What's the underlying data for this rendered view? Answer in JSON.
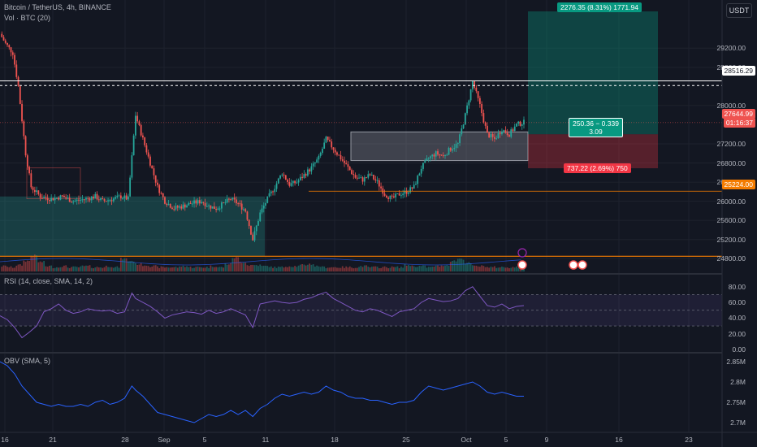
{
  "header": {
    "symbol": "Bitcoin / TetherUS, 4h, BINANCE",
    "volume_label": "Vol · BTC (20)",
    "currency_button": "USDT"
  },
  "rsi_label": "RSI (14, close, SMA, 14, 2)",
  "obv_label": "OBV (SMA, 5)",
  "badges": {
    "line_price": "28516.29",
    "current_price": "27644.99",
    "countdown": "01:16:37",
    "support_price": "25224.00"
  },
  "position": {
    "target_label": "2276.35 (8.31%) 1771.94",
    "ratio_label": "250.36 − 0.339",
    "ratio_value": "3.09",
    "stop_label": "737.22 (2.69%) 750"
  },
  "colors": {
    "up": "#26a69a",
    "down": "#ef5350",
    "background": "#131722",
    "rsi_line": "#7e57c2",
    "obv_line": "#2962ff",
    "support_line": "#f57c00"
  },
  "chart_data": [
    {
      "type": "candlestick",
      "title": "Bitcoin / TetherUS, 4h, BINANCE",
      "ylim": [
        24600,
        29800
      ],
      "y_ticks": [
        "29200.00",
        "28800.00",
        "28000.00",
        "27200.00",
        "26800.00",
        "26400.00",
        "26000.00",
        "25600.00",
        "25200.00",
        "24800.00"
      ],
      "x_ticks": [
        "16",
        "21",
        "28",
        "Sep",
        "5",
        "11",
        "18",
        "25",
        "Oct",
        "5",
        "9",
        "16",
        "23"
      ],
      "path_close": [
        [
          0,
          29500
        ],
        [
          3,
          29300
        ],
        [
          7,
          29100
        ],
        [
          10,
          28400
        ],
        [
          14,
          27000
        ],
        [
          17,
          26300
        ],
        [
          22,
          26100
        ],
        [
          28,
          26050
        ],
        [
          34,
          26100
        ],
        [
          40,
          26000
        ],
        [
          47,
          26050
        ],
        [
          52,
          26100
        ],
        [
          56,
          26000
        ],
        [
          62,
          26050
        ],
        [
          66,
          26100
        ],
        [
          70,
          26050
        ],
        [
          74,
          27800
        ],
        [
          78,
          27300
        ],
        [
          82,
          26800
        ],
        [
          86,
          26300
        ],
        [
          90,
          26000
        ],
        [
          95,
          25850
        ],
        [
          100,
          25900
        ],
        [
          104,
          25950
        ],
        [
          110,
          26000
        ],
        [
          114,
          25900
        ],
        [
          118,
          25850
        ],
        [
          122,
          25950
        ],
        [
          126,
          26050
        ],
        [
          130,
          25950
        ],
        [
          134,
          25800
        ],
        [
          138,
          25200
        ],
        [
          142,
          25750
        ],
        [
          146,
          26050
        ],
        [
          150,
          26300
        ],
        [
          154,
          26600
        ],
        [
          158,
          26350
        ],
        [
          162,
          26400
        ],
        [
          166,
          26550
        ],
        [
          170,
          26700
        ],
        [
          174,
          26900
        ],
        [
          178,
          27300
        ],
        [
          182,
          27100
        ],
        [
          186,
          26900
        ],
        [
          190,
          26700
        ],
        [
          194,
          26500
        ],
        [
          198,
          26450
        ],
        [
          202,
          26550
        ],
        [
          206,
          26400
        ],
        [
          210,
          26150
        ],
        [
          214,
          26050
        ],
        [
          218,
          26150
        ],
        [
          222,
          26200
        ],
        [
          226,
          26300
        ],
        [
          230,
          26700
        ],
        [
          234,
          26900
        ],
        [
          238,
          27000
        ],
        [
          242,
          26950
        ],
        [
          246,
          27100
        ],
        [
          250,
          27200
        ],
        [
          254,
          27800
        ],
        [
          258,
          28500
        ],
        [
          262,
          28000
        ],
        [
          266,
          27400
        ],
        [
          270,
          27300
        ],
        [
          274,
          27500
        ],
        [
          278,
          27400
        ],
        [
          282,
          27600
        ],
        [
          286,
          27650
        ]
      ],
      "volume": [
        4,
        3,
        5,
        9,
        14,
        8,
        4,
        3,
        4,
        3,
        3,
        4,
        3,
        3,
        4,
        3,
        11,
        9,
        6,
        5,
        4,
        3,
        3,
        3,
        4,
        3,
        3,
        3,
        4,
        3,
        6,
        12,
        8,
        5,
        5,
        4,
        3,
        3,
        4,
        4,
        5,
        6,
        4,
        3,
        3,
        3,
        3,
        3,
        4,
        3,
        3,
        3,
        3,
        3,
        5,
        4,
        4,
        3,
        4,
        5,
        9,
        11,
        7,
        4,
        4,
        3,
        3,
        3,
        3,
        3
      ]
    },
    {
      "type": "line",
      "name": "RSI (14, close, SMA, 14, 2)",
      "ylim": [
        0,
        85
      ],
      "y_ticks": [
        "80.00",
        "60.00",
        "40.00",
        "20.00",
        "0.00"
      ],
      "x": [
        0,
        4,
        8,
        12,
        16,
        20,
        24,
        28,
        32,
        36,
        40,
        44,
        48,
        52,
        56,
        60,
        64,
        68,
        72,
        74,
        78,
        82,
        86,
        90,
        94,
        98,
        102,
        106,
        110,
        114,
        118,
        122,
        126,
        130,
        134,
        138,
        142,
        146,
        150,
        154,
        158,
        162,
        166,
        170,
        174,
        178,
        182,
        186,
        190,
        194,
        198,
        202,
        206,
        210,
        214,
        218,
        222,
        226,
        230,
        234,
        238,
        242,
        246,
        250,
        254,
        258,
        262,
        266,
        270,
        274,
        278,
        282,
        286
      ],
      "y": [
        43,
        38,
        28,
        15,
        22,
        30,
        48,
        52,
        58,
        50,
        46,
        48,
        52,
        50,
        49,
        50,
        46,
        48,
        72,
        65,
        60,
        55,
        48,
        40,
        44,
        46,
        48,
        47,
        45,
        50,
        46,
        48,
        52,
        48,
        44,
        28,
        58,
        60,
        62,
        60,
        59,
        60,
        64,
        66,
        70,
        73,
        65,
        60,
        55,
        50,
        48,
        52,
        50,
        46,
        42,
        48,
        50,
        52,
        60,
        65,
        63,
        61,
        62,
        65,
        75,
        80,
        68,
        56,
        54,
        58,
        52,
        55,
        56
      ]
    },
    {
      "type": "line",
      "name": "OBV (SMA, 5)",
      "ylim": [
        2.68,
        2.86
      ],
      "y_ticks": [
        "2.85M",
        "2.8M",
        "2.75M",
        "2.7M"
      ],
      "x": [
        0,
        4,
        8,
        12,
        16,
        20,
        24,
        28,
        32,
        36,
        40,
        44,
        48,
        52,
        56,
        60,
        64,
        68,
        72,
        74,
        78,
        82,
        86,
        90,
        94,
        98,
        102,
        106,
        110,
        114,
        118,
        122,
        126,
        130,
        134,
        138,
        142,
        146,
        150,
        154,
        158,
        162,
        166,
        170,
        174,
        178,
        182,
        186,
        190,
        194,
        198,
        202,
        206,
        210,
        214,
        218,
        222,
        226,
        230,
        234,
        238,
        242,
        246,
        250,
        254,
        258,
        262,
        266,
        270,
        274,
        278,
        282,
        286
      ],
      "y": [
        2.85,
        2.84,
        2.82,
        2.79,
        2.77,
        2.75,
        2.745,
        2.74,
        2.745,
        2.74,
        2.74,
        2.745,
        2.74,
        2.75,
        2.755,
        2.745,
        2.75,
        2.76,
        2.79,
        2.78,
        2.765,
        2.745,
        2.725,
        2.72,
        2.715,
        2.71,
        2.705,
        2.7,
        2.71,
        2.72,
        2.715,
        2.72,
        2.73,
        2.72,
        2.73,
        2.715,
        2.735,
        2.745,
        2.76,
        2.77,
        2.765,
        2.77,
        2.775,
        2.77,
        2.775,
        2.79,
        2.78,
        2.775,
        2.765,
        2.76,
        2.76,
        2.755,
        2.755,
        2.75,
        2.745,
        2.75,
        2.75,
        2.755,
        2.775,
        2.79,
        2.785,
        2.78,
        2.785,
        2.79,
        2.795,
        2.8,
        2.79,
        2.775,
        2.77,
        2.775,
        2.77,
        2.765,
        2.765
      ]
    }
  ]
}
